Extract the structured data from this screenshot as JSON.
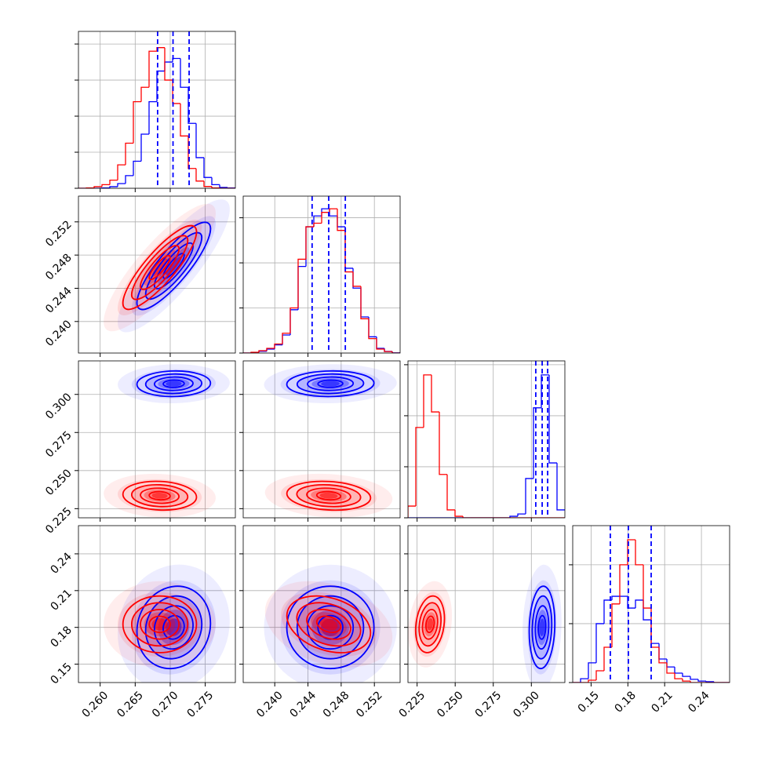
{
  "chart_data": {
    "type": "corner",
    "grid": true,
    "quantile_color": "#0000ff",
    "axes": [
      {
        "lim": [
          0.2569,
          0.2793
        ],
        "ticks": [
          {
            "value": 0.26,
            "label": "0.260"
          },
          {
            "value": 0.265,
            "label": "0.265"
          },
          {
            "value": 0.27,
            "label": "0.270"
          },
          {
            "value": 0.275,
            "label": "0.275"
          }
        ],
        "hist_ylim": [
          0,
          870
        ],
        "hist_yticks": [
          0,
          200,
          400,
          600,
          800
        ],
        "bins": [
          0.2569,
          0.25802,
          0.25914,
          0.26026,
          0.26138,
          0.2625,
          0.26362,
          0.26474,
          0.26586,
          0.26698,
          0.2681,
          0.26922,
          0.27034,
          0.27146,
          0.27258,
          0.2737,
          0.27482,
          0.27594,
          0.27706,
          0.27818,
          0.2793
        ],
        "quantiles": [
          0.2682,
          0.2704,
          0.2727
        ]
      },
      {
        "lim": [
          0.2362,
          0.2551
        ],
        "ticks": [
          {
            "value": 0.24,
            "label": "0.240"
          },
          {
            "value": 0.244,
            "label": "0.244"
          },
          {
            "value": 0.248,
            "label": "0.248"
          },
          {
            "value": 0.252,
            "label": "0.252"
          }
        ],
        "hist_ylim": [
          0,
          870
        ],
        "hist_yticks": [
          0,
          250,
          500,
          750
        ],
        "bins": [
          0.2362,
          0.237145,
          0.23809,
          0.239035,
          0.23998,
          0.240925,
          0.24187,
          0.242815,
          0.24376,
          0.244705,
          0.24565,
          0.246595,
          0.24754,
          0.248485,
          0.24943,
          0.250375,
          0.25132,
          0.252265,
          0.25321,
          0.254155,
          0.2551
        ],
        "quantiles": [
          0.2445,
          0.2465,
          0.2485
        ]
      },
      {
        "lim": [
          0.219,
          0.322
        ],
        "ticks": [
          {
            "value": 0.225,
            "label": "0.225"
          },
          {
            "value": 0.25,
            "label": "0.250"
          },
          {
            "value": 0.275,
            "label": "0.275"
          },
          {
            "value": 0.3,
            "label": "0.300"
          }
        ],
        "hist_ylim": [
          0,
          615
        ],
        "hist_yticks": [
          0,
          200,
          400,
          600
        ],
        "bins": [
          0.219,
          0.22415,
          0.2293,
          0.23445,
          0.2396,
          0.24475,
          0.2499,
          0.25505,
          0.2602,
          0.26535,
          0.2705,
          0.27565,
          0.2808,
          0.28595,
          0.2911,
          0.29625,
          0.3014,
          0.30655,
          0.3117,
          0.31685,
          0.322
        ],
        "quantiles": [
          0.3029,
          0.3071,
          0.3107
        ]
      },
      {
        "lim": [
          0.135,
          0.263
        ],
        "ticks": [
          0.15,
          0.18,
          0.21,
          0.24
        ],
        "hist_ylim": [
          0,
          533
        ],
        "hist_yticks": [
          0,
          200,
          400
        ],
        "bins": [
          0.135,
          0.1414,
          0.1478,
          0.1542,
          0.1606,
          0.167,
          0.1734,
          0.1798,
          0.1862,
          0.1926,
          0.199,
          0.2054,
          0.2118,
          0.2182,
          0.2246,
          0.231,
          0.2374,
          0.2438,
          0.2502,
          0.2566,
          0.263
        ],
        "quantiles": [
          0.1657,
          0.1804,
          0.199
        ]
      }
    ],
    "series": [
      {
        "color": "#0000ff",
        "counts": [
          [
            0,
            0,
            0,
            2,
            9,
            26,
            70,
            150,
            300,
            480,
            650,
            700,
            720,
            560,
            360,
            170,
            60,
            20,
            5,
            2
          ],
          [
            0,
            3,
            10,
            22,
            45,
            100,
            240,
            480,
            700,
            760,
            800,
            760,
            700,
            470,
            360,
            200,
            90,
            26,
            9,
            1
          ],
          [
            0,
            0,
            0,
            0,
            0,
            0,
            0,
            0,
            0,
            0,
            0,
            0,
            0,
            6,
            15,
            154,
            431,
            560,
            215,
            31
          ],
          [
            0,
            13,
            67,
            200,
            280,
            293,
            293,
            253,
            280,
            213,
            133,
            80,
            53,
            32,
            21,
            11,
            5,
            3,
            0,
            0
          ]
        ],
        "mean": [
          0.2705,
          0.2467,
          0.307,
          0.18
        ],
        "sd": [
          0.0025,
          0.0025,
          0.004,
          0.016
        ],
        "corr": [
          [],
          [
            0.85
          ],
          [
            0.05,
            0.05
          ],
          [
            0.1,
            0.0,
            0.1
          ]
        ]
      },
      {
        "color": "#ff0000",
        "counts": [
          [
            0,
            2,
            9,
            20,
            45,
            130,
            250,
            480,
            560,
            760,
            780,
            600,
            470,
            290,
            110,
            40,
            10,
            2,
            0,
            0
          ],
          [
            0,
            4,
            13,
            26,
            50,
            110,
            250,
            520,
            700,
            720,
            780,
            800,
            680,
            450,
            370,
            190,
            80,
            22,
            8,
            0
          ],
          [
            46,
            354,
            560,
            415,
            170,
            31,
            6,
            0,
            0,
            0,
            0,
            0,
            0,
            0,
            0,
            0,
            0,
            0,
            0,
            0
          ],
          [
            0,
            0,
            8,
            40,
            120,
            267,
            400,
            485,
            400,
            253,
            120,
            67,
            32,
            13,
            5,
            0,
            0,
            0,
            0,
            0
          ]
        ],
        "mean": [
          0.2685,
          0.2465,
          0.2335,
          0.1825
        ],
        "sd": [
          0.0025,
          0.0024,
          0.0045,
          0.011
        ],
        "corr": [
          [],
          [
            0.85
          ],
          [
            -0.1,
            -0.15
          ],
          [
            0.0,
            -0.3,
            0.2
          ]
        ]
      }
    ]
  }
}
